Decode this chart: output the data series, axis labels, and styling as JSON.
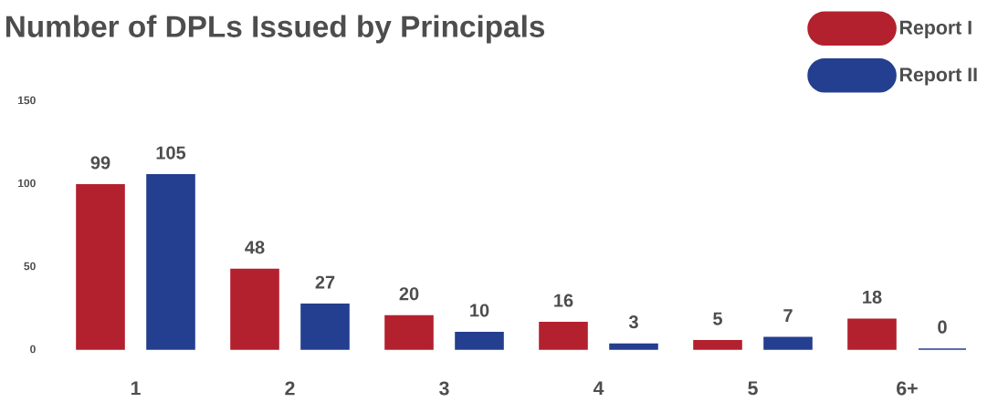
{
  "chart_data": {
    "type": "bar",
    "title": "Number of DPLs Issued by Principals",
    "categories": [
      "1",
      "2",
      "3",
      "4",
      "5",
      "6+"
    ],
    "series": [
      {
        "name": "Report I",
        "color": "#b3212e",
        "values": [
          99,
          48,
          20,
          16,
          5,
          18
        ]
      },
      {
        "name": "Report II",
        "color": "#243f8f",
        "values": [
          105,
          27,
          10,
          3,
          7,
          0
        ]
      }
    ],
    "ylim": [
      0,
      150
    ],
    "yticks": [
      0,
      50,
      100,
      150
    ],
    "data_labels": true,
    "legend": "top right",
    "grid": false
  }
}
